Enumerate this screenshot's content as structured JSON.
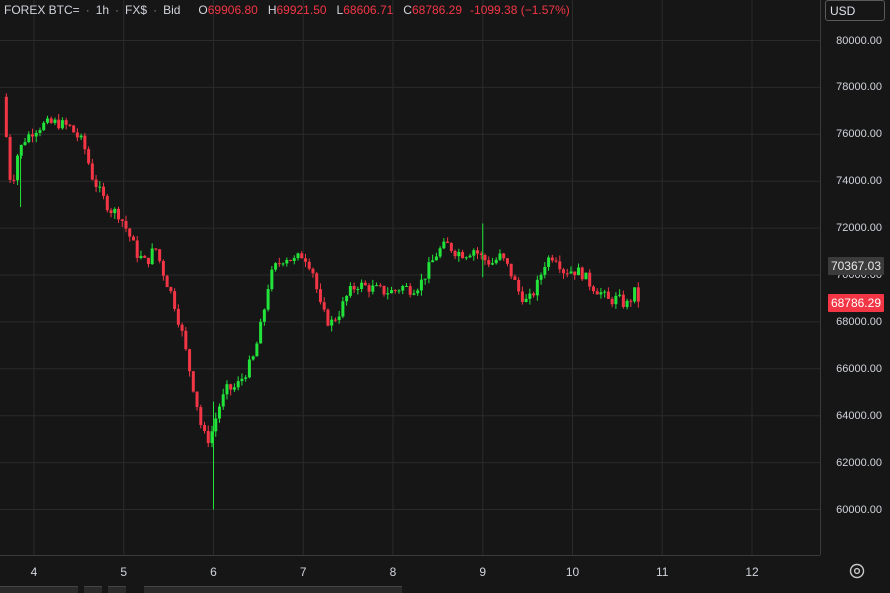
{
  "header": {
    "symbol": "FOREX BTC=",
    "interval": "1h",
    "exchange": "FX$",
    "price_type": "Bid",
    "open_label": "O",
    "open_value": "69906.80",
    "high_label": "H",
    "high_value": "69921.50",
    "low_label": "L",
    "low_value": "68606.71",
    "close_label": "C",
    "close_value": "68786.29",
    "change": "-1099.38 (−1.57%)"
  },
  "currency": {
    "label": "USD",
    "icon": "chevron-down-icon"
  },
  "price_axis": {
    "ticks": [
      "80000.00",
      "78000.00",
      "76000.00",
      "74000.00",
      "72000.00",
      "70000.00",
      "68000.00",
      "66000.00",
      "64000.00",
      "62000.00",
      "60000.00"
    ],
    "last_price_label": "70367.03",
    "current_price_label": "68786.29"
  },
  "time_axis": {
    "ticks": [
      "4",
      "5",
      "6",
      "7",
      "8",
      "9",
      "10",
      "11",
      "12"
    ]
  },
  "settings": {
    "icon": "gear-icon"
  },
  "colors": {
    "background": "#161616",
    "grid": "#2a2a2a",
    "up": "#22e33a",
    "down": "#f23645",
    "text": "#d1d4dc"
  },
  "chart_data": {
    "type": "candlestick",
    "x_unit": "day",
    "x_ticks": [
      4,
      5,
      6,
      7,
      8,
      9,
      10,
      11,
      12
    ],
    "ylim": [
      58000,
      81000
    ],
    "grid": true,
    "close_path": [
      [
        3.65,
        77600
      ],
      [
        3.75,
        73500
      ],
      [
        3.8,
        75000
      ],
      [
        3.9,
        75800
      ],
      [
        4.0,
        76200
      ],
      [
        4.1,
        76400
      ],
      [
        4.25,
        76500
      ],
      [
        4.4,
        76300
      ],
      [
        4.55,
        75600
      ],
      [
        4.65,
        74200
      ],
      [
        4.75,
        73400
      ],
      [
        4.85,
        72800
      ],
      [
        4.95,
        72600
      ],
      [
        5.05,
        71800
      ],
      [
        5.15,
        70900
      ],
      [
        5.25,
        70500
      ],
      [
        5.35,
        71200
      ],
      [
        5.45,
        70000
      ],
      [
        5.55,
        69000
      ],
      [
        5.65,
        67500
      ],
      [
        5.72,
        66200
      ],
      [
        5.8,
        64800
      ],
      [
        5.88,
        63200
      ],
      [
        5.95,
        63000
      ],
      [
        6.0,
        63500
      ],
      [
        6.05,
        64300
      ],
      [
        6.15,
        65100
      ],
      [
        6.25,
        65200
      ],
      [
        6.35,
        65800
      ],
      [
        6.45,
        66500
      ],
      [
        6.55,
        68200
      ],
      [
        6.62,
        69800
      ],
      [
        6.7,
        70400
      ],
      [
        6.8,
        70800
      ],
      [
        6.9,
        70600
      ],
      [
        7.0,
        70900
      ],
      [
        7.1,
        70300
      ],
      [
        7.2,
        68500
      ],
      [
        7.3,
        67900
      ],
      [
        7.4,
        68400
      ],
      [
        7.5,
        69200
      ],
      [
        7.6,
        69600
      ],
      [
        7.7,
        69500
      ],
      [
        7.8,
        69400
      ],
      [
        7.9,
        69300
      ],
      [
        8.0,
        69300
      ],
      [
        8.1,
        69500
      ],
      [
        8.2,
        69400
      ],
      [
        8.3,
        69600
      ],
      [
        8.4,
        70300
      ],
      [
        8.5,
        71000
      ],
      [
        8.6,
        71300
      ],
      [
        8.7,
        71000
      ],
      [
        8.8,
        70900
      ],
      [
        8.9,
        71100
      ],
      [
        9.0,
        70700
      ],
      [
        9.1,
        70500
      ],
      [
        9.2,
        70800
      ],
      [
        9.3,
        70200
      ],
      [
        9.4,
        69300
      ],
      [
        9.5,
        68800
      ],
      [
        9.6,
        69500
      ],
      [
        9.7,
        70600
      ],
      [
        9.8,
        70900
      ],
      [
        9.9,
        70200
      ],
      [
        10.0,
        70200
      ],
      [
        10.1,
        70100
      ],
      [
        10.2,
        69600
      ],
      [
        10.3,
        69300
      ],
      [
        10.4,
        68900
      ],
      [
        10.5,
        69000
      ],
      [
        10.6,
        68700
      ],
      [
        10.7,
        69300
      ],
      [
        10.75,
        68786
      ]
    ],
    "wicks": [
      {
        "x": 6.0,
        "low": 60000,
        "high": 64600
      },
      {
        "x": 9.0,
        "low": 69900,
        "high": 72200
      },
      {
        "x": 3.85,
        "low": 72900,
        "high": 75500
      }
    ]
  }
}
